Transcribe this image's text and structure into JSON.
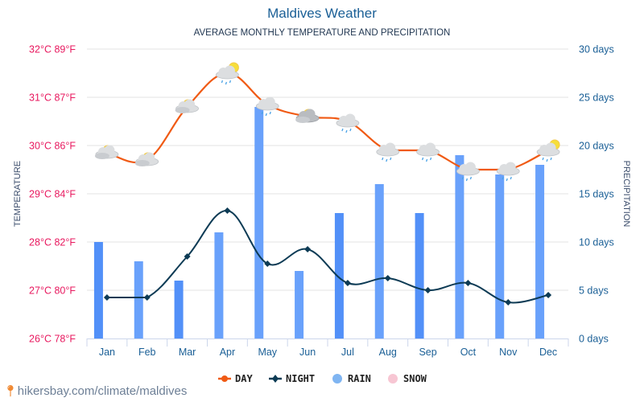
{
  "header": {
    "title": "Maldives Weather",
    "subtitle": "AVERAGE MONTHLY TEMPERATURE AND PRECIPITATION"
  },
  "footer": {
    "source": "hikersbay.com/climate/maldives",
    "pin_icon": "map-pin-icon"
  },
  "colors": {
    "day": "#f05a14",
    "night": "#0d3b55",
    "rain": "#5290f8",
    "rain_light": "#69a1fb",
    "snow": "#f7c6d3",
    "left_ticks": "#e8195f",
    "right_ticks": "#1a5f96",
    "grid": "#e3e3e3"
  },
  "chart_data": {
    "type": "bar+line",
    "title": "Maldives Weather",
    "subtitle": "AVERAGE MONTHLY TEMPERATURE AND PRECIPITATION",
    "categories": [
      "Jan",
      "Feb",
      "Mar",
      "Apr",
      "May",
      "Jun",
      "Jul",
      "Aug",
      "Sep",
      "Oct",
      "Nov",
      "Dec"
    ],
    "y_left": {
      "label": "TEMPERATURE",
      "range": [
        26,
        32
      ],
      "ticks": [
        "26°C 78°F",
        "27°C 80°F",
        "28°C 82°F",
        "29°C 84°F",
        "30°C 86°F",
        "31°C 87°F",
        "32°C 89°F"
      ]
    },
    "y_right": {
      "label": "PRECIPITATION",
      "range": [
        0,
        30
      ],
      "ticks": [
        "0 days",
        "5 days",
        "10 days",
        "15 days",
        "20 days",
        "25 days",
        "30 days"
      ]
    },
    "grid": true,
    "series": [
      {
        "name": "DAY",
        "type": "line",
        "axis": "left",
        "values": [
          29.85,
          29.7,
          30.8,
          31.5,
          30.85,
          30.6,
          30.5,
          29.9,
          29.9,
          29.5,
          29.5,
          29.9
        ],
        "icons": [
          "partly-cloudy-sun",
          "partly-cloudy-sun",
          "partly-cloudy-sun",
          "rain-sun",
          "rain-cloud",
          "dark-cloud-sun",
          "rain-cloud",
          "rain-cloud",
          "rain-cloud",
          "rain-cloud",
          "rain-cloud",
          "rain-sun"
        ]
      },
      {
        "name": "NIGHT",
        "type": "line",
        "axis": "left",
        "values": [
          26.85,
          26.85,
          27.7,
          28.65,
          27.55,
          27.85,
          27.15,
          27.25,
          27.0,
          27.15,
          26.75,
          26.9
        ]
      },
      {
        "name": "RAIN",
        "type": "bar",
        "axis": "right",
        "values": [
          10,
          8,
          6,
          11,
          24,
          7,
          13,
          16,
          13,
          19,
          17,
          18
        ]
      },
      {
        "name": "SNOW",
        "type": "bar",
        "axis": "right",
        "values": [
          0,
          0,
          0,
          0,
          0,
          0,
          0,
          0,
          0,
          0,
          0,
          0
        ]
      }
    ],
    "legend": {
      "position": "bottom-center",
      "items": [
        "DAY",
        "NIGHT",
        "RAIN",
        "SNOW"
      ]
    }
  }
}
